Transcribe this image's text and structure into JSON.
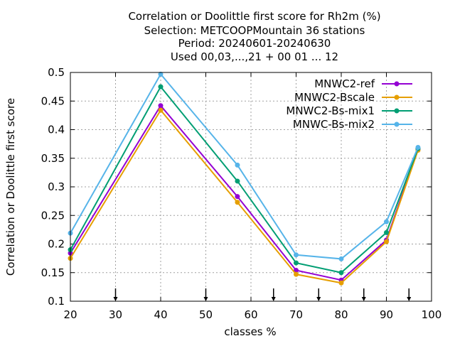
{
  "chart_data": {
    "type": "line",
    "title": [
      "Correlation or Doolittle first score  for Rh2m (%)",
      "Selection: METCOOPMountain     36 stations",
      "Period: 20240601-20240630",
      "Used 00,03,...,21 + 00 01 ... 12"
    ],
    "xlabel": "classes %",
    "ylabel": "Correlation or Doolittle first score",
    "xlim": [
      20,
      100
    ],
    "ylim": [
      0.1,
      0.5
    ],
    "xticks": [
      "20",
      "30",
      "40",
      "50",
      "60",
      "70",
      "80",
      "90",
      "100"
    ],
    "yticks": [
      "0.1",
      "0.15",
      "0.2",
      "0.25",
      "0.3",
      "0.35",
      "0.4",
      "0.45",
      "0.5"
    ],
    "grid": true,
    "legend_position": "top-right",
    "x": [
      20,
      40,
      57,
      70,
      80,
      90,
      97
    ],
    "series": [
      {
        "name": "MNWC2-ref",
        "color": "#9400d3",
        "marker": "circle",
        "values": [
          0.184,
          0.442,
          0.283,
          0.154,
          0.137,
          0.207,
          0.366
        ]
      },
      {
        "name": "MNWC2-Bscale",
        "color": "#e69f00",
        "marker": "circle",
        "values": [
          0.175,
          0.434,
          0.273,
          0.147,
          0.132,
          0.204,
          0.364
        ]
      },
      {
        "name": "MNWC2-Bs-mix1",
        "color": "#009e73",
        "marker": "circle",
        "values": [
          0.19,
          0.475,
          0.31,
          0.167,
          0.15,
          0.22,
          0.367
        ]
      },
      {
        "name": "MNWC-Bs-mix2",
        "color": "#56b4e9",
        "marker": "circle",
        "values": [
          0.219,
          0.497,
          0.338,
          0.181,
          0.174,
          0.239,
          0.369
        ]
      }
    ],
    "arrows_x": [
      30,
      50,
      65,
      75,
      85,
      95
    ]
  }
}
